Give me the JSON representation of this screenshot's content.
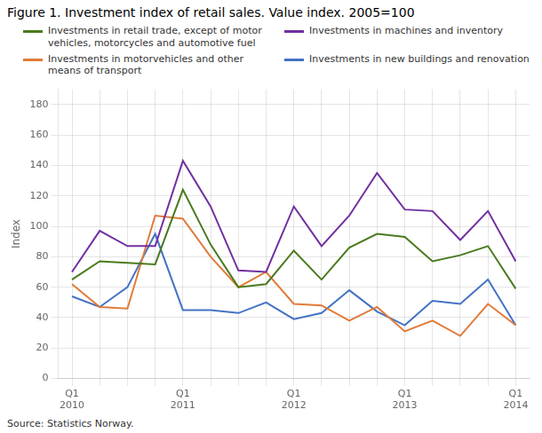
{
  "chart_data": {
    "type": "line",
    "title": "Figure 1. Investment index of retail sales. Value index. 2005=100",
    "ylabel": "Index",
    "source": "Source: Statistics Norway.",
    "categories": [
      "Q1\n2010",
      null,
      null,
      null,
      "Q1\n2011",
      null,
      null,
      null,
      "Q1\n2012",
      null,
      null,
      null,
      "Q1\n2013",
      null,
      null,
      null,
      "Q1\n2014"
    ],
    "series": [
      {
        "name": "Investments in retail trade, except of motor\nvehicles, motorcycles and automotive fuel",
        "color": "#4a7a1e",
        "values": [
          65,
          77,
          76,
          75,
          124,
          88,
          60,
          62,
          84,
          65,
          86,
          95,
          93,
          77,
          81,
          87,
          59
        ]
      },
      {
        "name": "Investments in machines and inventory",
        "color": "#7030a0",
        "values": [
          70,
          97,
          87,
          87,
          143,
          113,
          71,
          70,
          113,
          87,
          107,
          135,
          111,
          110,
          91,
          110,
          77
        ]
      },
      {
        "name": "Investments in motorvehicles and other\nmeans of transport",
        "color": "#e07b39",
        "values": [
          62,
          47,
          46,
          107,
          105,
          80,
          60,
          70,
          49,
          48,
          38,
          47,
          31,
          38,
          28,
          49,
          35
        ]
      },
      {
        "name": "Investments in new buildings and renovation",
        "color": "#4472c4",
        "values": [
          54,
          47,
          60,
          95,
          45,
          45,
          43,
          50,
          39,
          43,
          58,
          44,
          35,
          51,
          49,
          65,
          35
        ]
      }
    ],
    "ylim": [
      0,
      190
    ],
    "yticks": [
      0,
      20,
      40,
      60,
      80,
      100,
      120,
      140,
      160,
      180
    ],
    "grid": true,
    "legend": "upper right"
  }
}
